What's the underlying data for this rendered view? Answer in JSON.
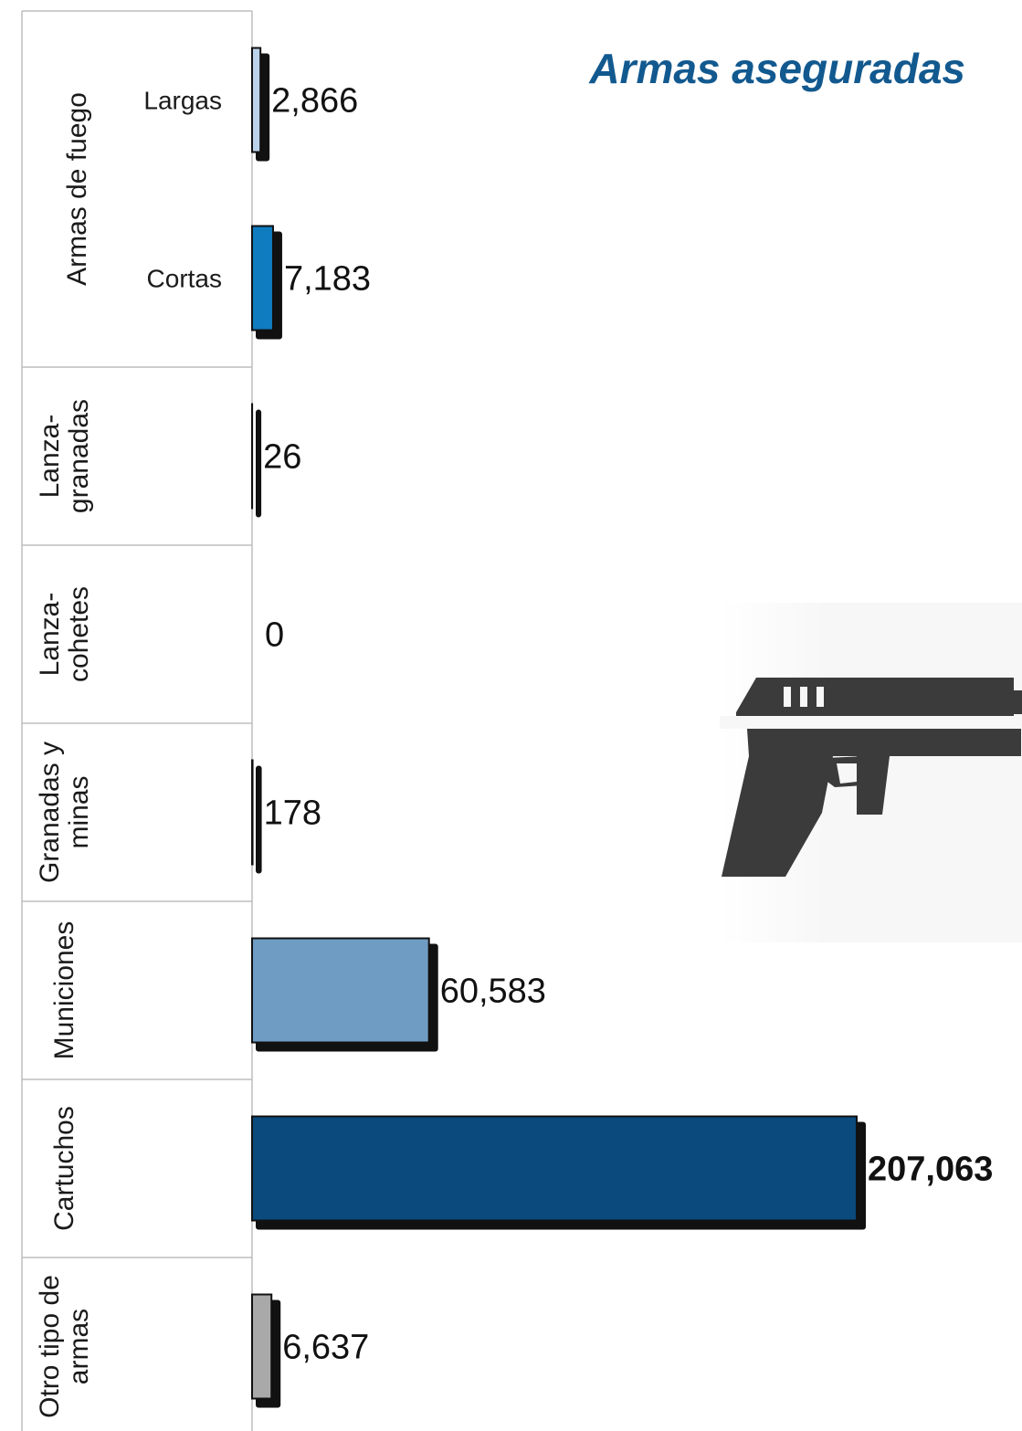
{
  "chart_data": {
    "type": "bar",
    "orientation": "horizontal",
    "title": "Armas aseguradas",
    "groups": [
      {
        "label": "Armas de fuego",
        "rows": 2
      },
      {
        "label": "Lanza-\ngranadas",
        "rows": 1
      },
      {
        "label": "Lanza-\ncohetes",
        "rows": 1
      },
      {
        "label": "Granadas y\nminas",
        "rows": 1
      },
      {
        "label": "Municiones",
        "rows": 1
      },
      {
        "label": "Cartuchos",
        "rows": 1
      },
      {
        "label": "Otro tipo de\narmas",
        "rows": 1
      }
    ],
    "categories": [
      {
        "group": "Armas de fuego",
        "sub": "Largas",
        "value": 2866,
        "display": "2,866",
        "color": "#bcd2ea"
      },
      {
        "group": "Armas de fuego",
        "sub": "Cortas",
        "value": 7183,
        "display": "7,183",
        "color": "#0f7cc0"
      },
      {
        "group": "Lanza-granadas",
        "sub": "",
        "value": 26,
        "display": "26",
        "color": "#7a7a7a"
      },
      {
        "group": "Lanza-cohetes",
        "sub": "",
        "value": 0,
        "display": "0",
        "color": "#7a7a7a"
      },
      {
        "group": "Granadas y minas",
        "sub": "",
        "value": 178,
        "display": "178",
        "color": "#7a7a7a"
      },
      {
        "group": "Municiones",
        "sub": "",
        "value": 60583,
        "display": "60,583",
        "color": "#6f9cc2"
      },
      {
        "group": "Cartuchos",
        "sub": "",
        "value": 207063,
        "display": "207,063",
        "color": "#0b4a7d",
        "bold": true
      },
      {
        "group": "Otro tipo de armas",
        "sub": "",
        "value": 6637,
        "display": "6,637",
        "color": "#a9a9a9"
      }
    ],
    "xlim": [
      0,
      207063
    ],
    "grid": false,
    "legend": "none"
  },
  "decor": {
    "pistol": "pistol-icon",
    "pistol_color": "#3b3b3b"
  }
}
